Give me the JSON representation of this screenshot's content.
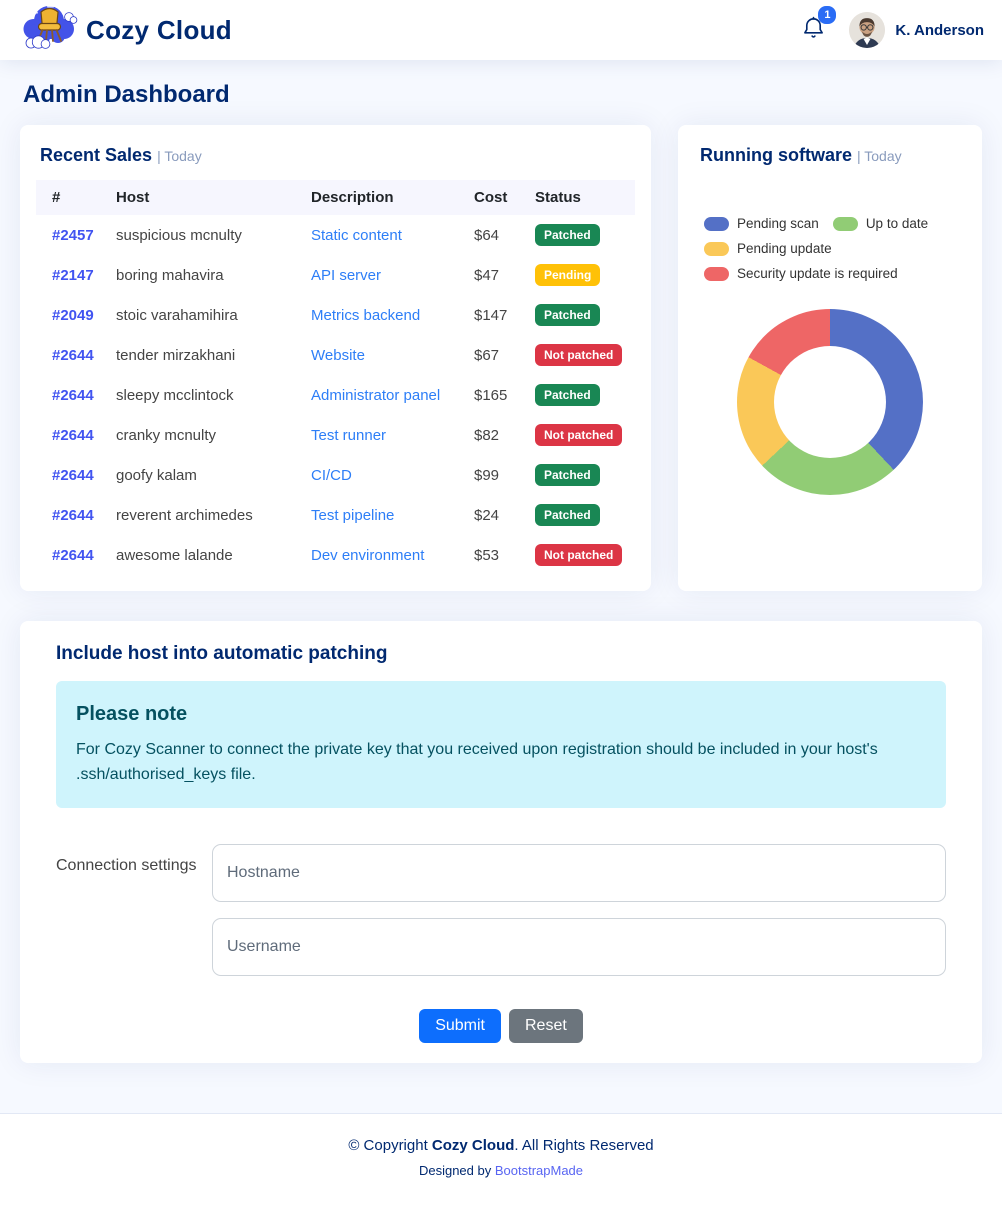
{
  "navbar": {
    "brand": "Cozy Cloud",
    "notification_count": "1",
    "user_name": "K. Anderson"
  },
  "page": {
    "title": "Admin Dashboard"
  },
  "recent_sales": {
    "title": "Recent Sales",
    "subtitle": "| Today",
    "columns": [
      "#",
      "Host",
      "Description",
      "Cost",
      "Status"
    ],
    "rows": [
      {
        "id": "#2457",
        "host": "suspicious mcnulty",
        "description": "Static content",
        "cost": "$64",
        "status": "Patched",
        "status_type": "success"
      },
      {
        "id": "#2147",
        "host": "boring mahavira",
        "description": "API server",
        "cost": "$47",
        "status": "Pending",
        "status_type": "warning"
      },
      {
        "id": "#2049",
        "host": "stoic varahamihira",
        "description": "Metrics backend",
        "cost": "$147",
        "status": "Patched",
        "status_type": "success"
      },
      {
        "id": "#2644",
        "host": "tender mirzakhani",
        "description": "Website",
        "cost": "$67",
        "status": "Not patched",
        "status_type": "danger"
      },
      {
        "id": "#2644",
        "host": "sleepy mcclintock",
        "description": "Administrator panel",
        "cost": "$165",
        "status": "Patched",
        "status_type": "success"
      },
      {
        "id": "#2644",
        "host": "cranky mcnulty",
        "description": "Test runner",
        "cost": "$82",
        "status": "Not patched",
        "status_type": "danger"
      },
      {
        "id": "#2644",
        "host": "goofy kalam",
        "description": "CI/CD",
        "cost": "$99",
        "status": "Patched",
        "status_type": "success"
      },
      {
        "id": "#2644",
        "host": "reverent archimedes",
        "description": "Test pipeline",
        "cost": "$24",
        "status": "Patched",
        "status_type": "success"
      },
      {
        "id": "#2644",
        "host": "awesome lalande",
        "description": "Dev environment",
        "cost": "$53",
        "status": "Not patched",
        "status_type": "danger"
      }
    ]
  },
  "running_software": {
    "title": "Running software",
    "subtitle": "| Today"
  },
  "chart_data": {
    "type": "pie",
    "donut": true,
    "inner_radius_pct": 60,
    "title": "Running software | Today",
    "legend_position": "top",
    "labels": [
      "Pending scan",
      "Up to date",
      "Pending update",
      "Security update is required"
    ],
    "values": [
      38,
      25,
      20,
      17
    ],
    "unit": "percent",
    "colors": [
      "#5470c6",
      "#91cc75",
      "#fac858",
      "#ee6666"
    ]
  },
  "patching": {
    "title": "Include host into automatic patching",
    "alert": {
      "heading": "Please note",
      "body": "For Cozy Scanner to connect the private key that you received upon registration should be included in your host's .ssh/authorised_keys file."
    },
    "form": {
      "label": "Connection settings",
      "hostname_placeholder": "Hostname",
      "username_placeholder": "Username",
      "submit_label": "Submit",
      "reset_label": "Reset"
    }
  },
  "footer": {
    "copyright_prefix": "© Copyright ",
    "brand": "Cozy Cloud",
    "copyright_suffix": ". All Rights Reserved",
    "designed_by": "Designed by ",
    "designer": "BootstrapMade"
  },
  "colors": {
    "heading": "#012970",
    "accent": "#4154f1",
    "link": "#2d7ef7",
    "success": "#198754",
    "warning": "#ffc107",
    "danger": "#dc3545",
    "info_bg": "#cff4fc",
    "info_text": "#055160",
    "page_bg": "#f6f9ff",
    "muted": "#899bbd"
  }
}
